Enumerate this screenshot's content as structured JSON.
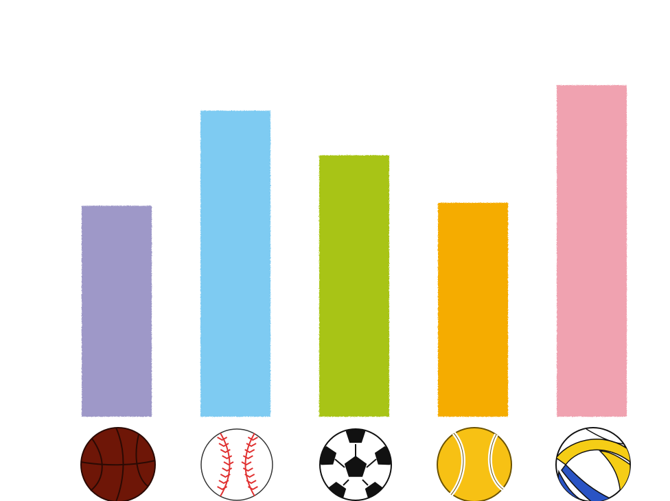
{
  "chart_data": {
    "type": "bar",
    "title": "",
    "xlabel": "",
    "ylabel": "",
    "categories": [
      "basketball",
      "baseball",
      "soccer",
      "tennis",
      "volleyball"
    ],
    "values": [
      3.55,
      5.15,
      4.4,
      3.6,
      5.58
    ],
    "ylim": [
      0,
      7
    ],
    "yticks": [
      1,
      2,
      3,
      4,
      5,
      6
    ],
    "grid": true,
    "legend": "none",
    "colors": [
      "#9e98c8",
      "#7ecbf2",
      "#a8c418",
      "#f5ac00",
      "#f0a2b0"
    ],
    "icons": [
      "basketball-icon",
      "baseball-icon",
      "soccer-ball-icon",
      "tennis-ball-icon",
      "volleyball-icon"
    ]
  },
  "style": {
    "axis_color": "#6d6d6d",
    "grid_color": "#e2e2e2",
    "background": "#ffffff"
  }
}
